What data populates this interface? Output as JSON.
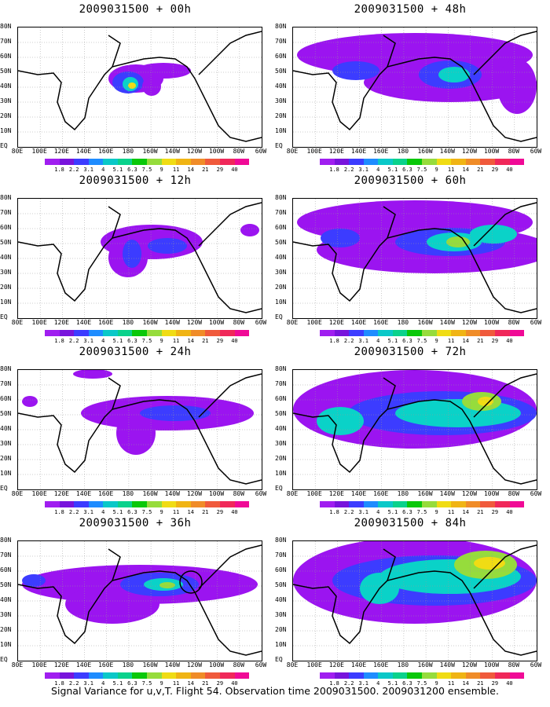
{
  "panels": [
    {
      "title": "2009031500 + 00h",
      "blobs": [
        {
          "cx": 150,
          "cy": 65,
          "rx": 35,
          "ry": 18,
          "c": "#9b14f0"
        },
        {
          "cx": 140,
          "cy": 70,
          "rx": 20,
          "ry": 14,
          "c": "#3c3cff"
        },
        {
          "cx": 143,
          "cy": 72,
          "rx": 10,
          "ry": 9,
          "c": "#0ad2c8"
        },
        {
          "cx": 145,
          "cy": 74,
          "rx": 5,
          "ry": 4,
          "c": "#f0dc14"
        },
        {
          "cx": 185,
          "cy": 55,
          "rx": 35,
          "ry": 10,
          "c": "#9b14f0"
        },
        {
          "cx": 170,
          "cy": 75,
          "rx": 12,
          "ry": 12,
          "c": "#9b14f0"
        }
      ],
      "circle": null
    },
    {
      "title": "2009031500 + 48h",
      "blobs": [
        {
          "cx": 155,
          "cy": 35,
          "rx": 150,
          "ry": 28,
          "c": "#9b14f0"
        },
        {
          "cx": 200,
          "cy": 70,
          "rx": 110,
          "ry": 25,
          "c": "#9b14f0"
        },
        {
          "cx": 200,
          "cy": 60,
          "rx": 40,
          "ry": 18,
          "c": "#3c3cff"
        },
        {
          "cx": 205,
          "cy": 60,
          "rx": 20,
          "ry": 10,
          "c": "#0ad2c8"
        },
        {
          "cx": 80,
          "cy": 55,
          "rx": 30,
          "ry": 12,
          "c": "#3c3cff"
        },
        {
          "cx": 285,
          "cy": 75,
          "rx": 25,
          "ry": 35,
          "c": "#9b14f0"
        }
      ],
      "circle": null
    },
    {
      "title": "2009031500 + 12h",
      "blobs": [
        {
          "cx": 170,
          "cy": 55,
          "rx": 65,
          "ry": 22,
          "c": "#9b14f0"
        },
        {
          "cx": 140,
          "cy": 75,
          "rx": 25,
          "ry": 25,
          "c": "#9b14f0"
        },
        {
          "cx": 145,
          "cy": 70,
          "rx": 12,
          "ry": 18,
          "c": "#3c3cff"
        },
        {
          "cx": 190,
          "cy": 60,
          "rx": 25,
          "ry": 10,
          "c": "#3c3cff"
        },
        {
          "cx": 295,
          "cy": 40,
          "rx": 12,
          "ry": 8,
          "c": "#9b14f0"
        }
      ],
      "circle": null
    },
    {
      "title": "2009031500 + 60h",
      "blobs": [
        {
          "cx": 155,
          "cy": 30,
          "rx": 150,
          "ry": 28,
          "c": "#9b14f0"
        },
        {
          "cx": 180,
          "cy": 65,
          "rx": 150,
          "ry": 30,
          "c": "#9b14f0"
        },
        {
          "cx": 200,
          "cy": 55,
          "rx": 70,
          "ry": 18,
          "c": "#3c3cff"
        },
        {
          "cx": 205,
          "cy": 55,
          "rx": 35,
          "ry": 12,
          "c": "#0ad2c8"
        },
        {
          "cx": 210,
          "cy": 55,
          "rx": 15,
          "ry": 7,
          "c": "#96dc3c"
        },
        {
          "cx": 255,
          "cy": 45,
          "rx": 30,
          "ry": 12,
          "c": "#0ad2c8"
        },
        {
          "cx": 60,
          "cy": 50,
          "rx": 25,
          "ry": 12,
          "c": "#3c3cff"
        }
      ],
      "circle": null
    },
    {
      "title": "2009031500 + 24h",
      "blobs": [
        {
          "cx": 190,
          "cy": 55,
          "rx": 110,
          "ry": 22,
          "c": "#9b14f0"
        },
        {
          "cx": 150,
          "cy": 80,
          "rx": 25,
          "ry": 28,
          "c": "#9b14f0"
        },
        {
          "cx": 200,
          "cy": 55,
          "rx": 45,
          "ry": 10,
          "c": "#3c3cff"
        },
        {
          "cx": 95,
          "cy": 5,
          "rx": 25,
          "ry": 6,
          "c": "#9b14f0"
        },
        {
          "cx": 15,
          "cy": 40,
          "rx": 10,
          "ry": 7,
          "c": "#9b14f0"
        }
      ],
      "circle": null
    },
    {
      "title": "2009031500 + 72h",
      "blobs": [
        {
          "cx": 155,
          "cy": 50,
          "rx": 155,
          "ry": 50,
          "c": "#9b14f0"
        },
        {
          "cx": 190,
          "cy": 55,
          "rx": 120,
          "ry": 28,
          "c": "#3c3cff"
        },
        {
          "cx": 210,
          "cy": 55,
          "rx": 80,
          "ry": 18,
          "c": "#0ad2c8"
        },
        {
          "cx": 60,
          "cy": 65,
          "rx": 30,
          "ry": 18,
          "c": "#0ad2c8"
        },
        {
          "cx": 240,
          "cy": 40,
          "rx": 25,
          "ry": 12,
          "c": "#96dc3c"
        },
        {
          "cx": 245,
          "cy": 40,
          "rx": 10,
          "ry": 6,
          "c": "#f0dc14"
        }
      ],
      "circle": null
    },
    {
      "title": "2009031500 + 36h",
      "blobs": [
        {
          "cx": 155,
          "cy": 55,
          "rx": 150,
          "ry": 25,
          "c": "#9b14f0"
        },
        {
          "cx": 120,
          "cy": 80,
          "rx": 60,
          "ry": 25,
          "c": "#9b14f0"
        },
        {
          "cx": 180,
          "cy": 55,
          "rx": 50,
          "ry": 15,
          "c": "#3c3cff"
        },
        {
          "cx": 185,
          "cy": 55,
          "rx": 25,
          "ry": 8,
          "c": "#0ad2c8"
        },
        {
          "cx": 190,
          "cy": 56,
          "rx": 10,
          "ry": 4,
          "c": "#96dc3c"
        },
        {
          "cx": 20,
          "cy": 50,
          "rx": 15,
          "ry": 8,
          "c": "#3c3cff"
        }
      ],
      "circle": {
        "cx": 220,
        "cy": 52,
        "r": 14
      }
    },
    {
      "title": "2009031500 + 84h",
      "blobs": [
        {
          "cx": 155,
          "cy": 50,
          "rx": 155,
          "ry": 55,
          "c": "#9b14f0"
        },
        {
          "cx": 180,
          "cy": 50,
          "rx": 130,
          "ry": 32,
          "c": "#3c3cff"
        },
        {
          "cx": 200,
          "cy": 45,
          "rx": 90,
          "ry": 22,
          "c": "#0ad2c8"
        },
        {
          "cx": 245,
          "cy": 30,
          "rx": 40,
          "ry": 18,
          "c": "#96dc3c"
        },
        {
          "cx": 250,
          "cy": 28,
          "rx": 20,
          "ry": 8,
          "c": "#f0dc14"
        },
        {
          "cx": 110,
          "cy": 60,
          "rx": 25,
          "ry": 20,
          "c": "#0ad2c8"
        }
      ],
      "circle": null
    }
  ],
  "axes": {
    "x_ticks": [
      "80E",
      "100E",
      "120E",
      "140E",
      "160E",
      "180",
      "160W",
      "140W",
      "120W",
      "100W",
      "80W",
      "60W"
    ],
    "y_ticks": [
      "80N",
      "70N",
      "60N",
      "50N",
      "40N",
      "30N",
      "20N",
      "10N",
      "EQ"
    ]
  },
  "colorbar": {
    "colors": [
      "#a01ef0",
      "#7814dc",
      "#3c3cff",
      "#1e8cff",
      "#0ac8c8",
      "#0ad28c",
      "#0ac80a",
      "#96dc3c",
      "#f0dc14",
      "#f0b414",
      "#f08c28",
      "#f05a3c",
      "#f0285a",
      "#f00a96"
    ],
    "labels": [
      "1.8",
      "2.2",
      "3.1",
      "4",
      "5.1",
      "6.3",
      "7.5",
      "9",
      "11",
      "14",
      "21",
      "29",
      "40"
    ]
  },
  "footer": "Signal Variance for u,v,T. Flight 54. Observation time 2009031500. 2009031200 ensemble."
}
